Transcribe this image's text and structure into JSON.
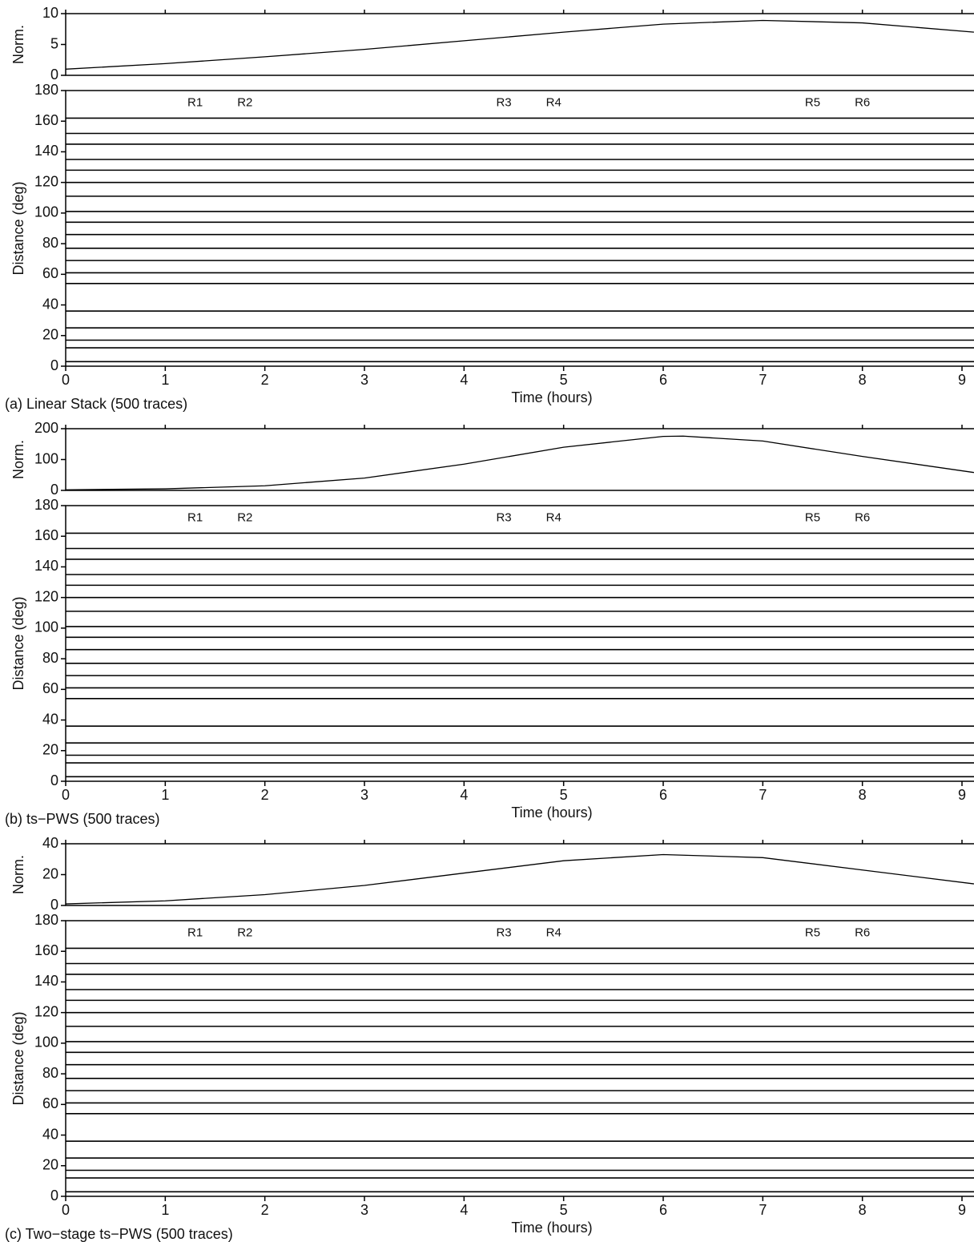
{
  "chart_data": [
    {
      "type": "seismogram_section",
      "caption": "(a) Linear Stack (500 traces)",
      "norm": {
        "ylabel": "Norm.",
        "ylim": [
          0,
          10
        ],
        "yticks": [
          0,
          5,
          10
        ],
        "x": [
          0,
          1,
          2,
          3,
          4,
          5,
          6,
          7,
          8,
          9.12
        ],
        "values": [
          1,
          1.9,
          3,
          4.2,
          5.6,
          7,
          8.3,
          8.9,
          8.5,
          7
        ]
      },
      "section": {
        "ylabel": "Distance (deg)",
        "xlabel": "Time (hours)",
        "xlim": [
          0,
          9.12
        ],
        "xticks": [
          0,
          1,
          2,
          3,
          4,
          5,
          6,
          7,
          8,
          9
        ],
        "ylim": [
          0,
          180
        ],
        "yticks": [
          0,
          20,
          40,
          60,
          80,
          100,
          120,
          140,
          160,
          180
        ],
        "traces": [
          162,
          152,
          145,
          135,
          128,
          120,
          111,
          101,
          94,
          86,
          77,
          69,
          61,
          54,
          36,
          25,
          17,
          12,
          3
        ],
        "annotations": [
          {
            "text": "R1",
            "x": 1.3,
            "y": 172
          },
          {
            "text": "R2",
            "x": 1.8,
            "y": 172
          },
          {
            "text": "R3",
            "x": 4.4,
            "y": 172
          },
          {
            "text": "R4",
            "x": 4.9,
            "y": 172
          },
          {
            "text": "R5",
            "x": 7.5,
            "y": 172
          },
          {
            "text": "R6",
            "x": 8.0,
            "y": 172
          }
        ]
      }
    },
    {
      "type": "seismogram_section",
      "caption": "(b) ts−PWS (500 traces)",
      "norm": {
        "ylabel": "Norm.",
        "ylim": [
          0,
          200
        ],
        "yticks": [
          0,
          100,
          200
        ],
        "x": [
          0,
          1,
          2,
          3,
          4,
          5,
          6,
          6.2,
          7,
          8,
          9.12
        ],
        "values": [
          2,
          5,
          15,
          40,
          85,
          140,
          175,
          176,
          160,
          110,
          58
        ]
      },
      "section": {
        "ylabel": "Distance (deg)",
        "xlabel": "Time (hours)",
        "xlim": [
          0,
          9.12
        ],
        "xticks": [
          0,
          1,
          2,
          3,
          4,
          5,
          6,
          7,
          8,
          9
        ],
        "ylim": [
          0,
          180
        ],
        "yticks": [
          0,
          20,
          40,
          60,
          80,
          100,
          120,
          140,
          160,
          180
        ],
        "traces": [
          162,
          152,
          145,
          135,
          128,
          120,
          111,
          101,
          94,
          86,
          77,
          69,
          61,
          54,
          36,
          25,
          17,
          12,
          3
        ],
        "annotations": [
          {
            "text": "R1",
            "x": 1.3,
            "y": 172
          },
          {
            "text": "R2",
            "x": 1.8,
            "y": 172
          },
          {
            "text": "R3",
            "x": 4.4,
            "y": 172
          },
          {
            "text": "R4",
            "x": 4.9,
            "y": 172
          },
          {
            "text": "R5",
            "x": 7.5,
            "y": 172
          },
          {
            "text": "R6",
            "x": 8.0,
            "y": 172
          }
        ]
      }
    },
    {
      "type": "seismogram_section",
      "caption": "(c) Two−stage ts−PWS (500 traces)",
      "norm": {
        "ylabel": "Norm.",
        "ylim": [
          0,
          40
        ],
        "yticks": [
          0,
          20,
          40
        ],
        "x": [
          0,
          1,
          2,
          3,
          4,
          5,
          6,
          7,
          8,
          9.12
        ],
        "values": [
          1,
          3,
          7,
          13,
          21,
          29,
          33,
          31,
          23,
          14
        ]
      },
      "section": {
        "ylabel": "Distance (deg)",
        "xlabel": "Time (hours)",
        "xlim": [
          0,
          9.12
        ],
        "xticks": [
          0,
          1,
          2,
          3,
          4,
          5,
          6,
          7,
          8,
          9
        ],
        "ylim": [
          0,
          180
        ],
        "yticks": [
          0,
          20,
          40,
          60,
          80,
          100,
          120,
          140,
          160,
          180
        ],
        "traces": [
          162,
          152,
          145,
          135,
          128,
          120,
          111,
          101,
          94,
          86,
          77,
          69,
          61,
          54,
          36,
          25,
          17,
          12,
          3
        ],
        "annotations": [
          {
            "text": "R1",
            "x": 1.3,
            "y": 172
          },
          {
            "text": "R2",
            "x": 1.8,
            "y": 172
          },
          {
            "text": "R3",
            "x": 4.4,
            "y": 172
          },
          {
            "text": "R4",
            "x": 4.9,
            "y": 172
          },
          {
            "text": "R5",
            "x": 7.5,
            "y": 172
          },
          {
            "text": "R6",
            "x": 8.0,
            "y": 172
          }
        ]
      }
    }
  ]
}
